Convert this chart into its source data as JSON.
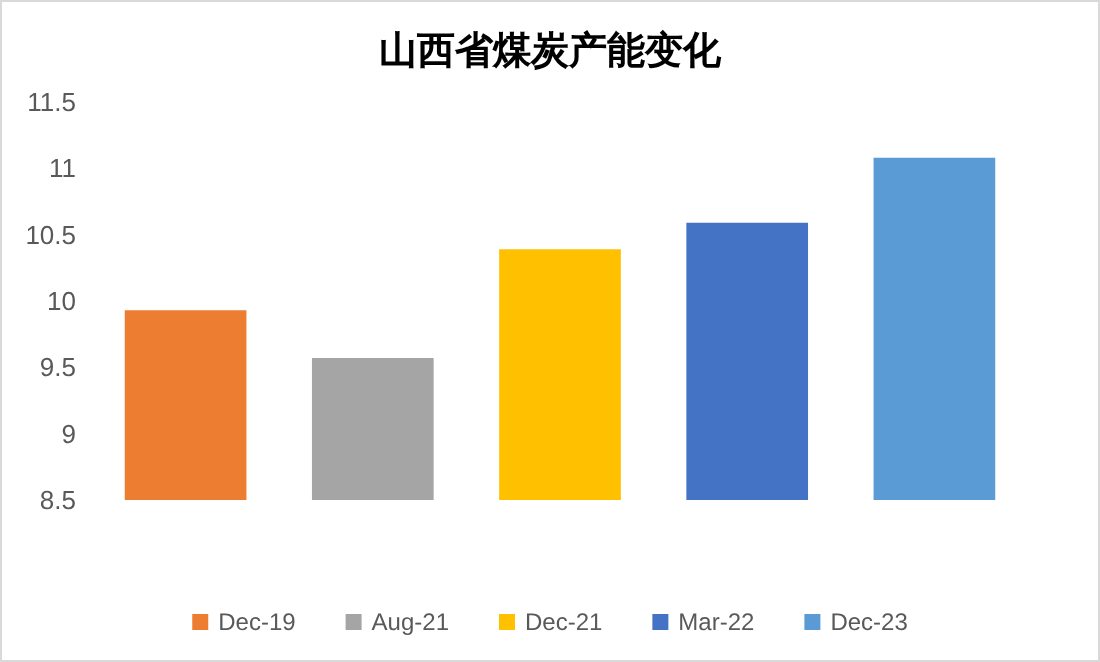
{
  "chart_data": {
    "type": "bar",
    "title": "山西省煤炭产能变化",
    "categories": [
      null,
      null,
      null,
      null,
      null
    ],
    "series": [
      {
        "name": "Dec-19",
        "color": "#ed7d31",
        "values": [
          9.93,
          null,
          null,
          null,
          null
        ]
      },
      {
        "name": "Aug-21",
        "color": "#a5a5a5",
        "values": [
          null,
          9.57,
          null,
          null,
          null
        ]
      },
      {
        "name": "Dec-21",
        "color": "#ffc000",
        "values": [
          null,
          null,
          10.39,
          null,
          null
        ]
      },
      {
        "name": "Mar-22",
        "color": "#4472c4",
        "values": [
          null,
          null,
          null,
          10.59,
          null
        ]
      },
      {
        "name": "Dec-23",
        "color": "#5b9bd5",
        "values": [
          null,
          null,
          null,
          null,
          11.08
        ]
      }
    ],
    "stacked": true,
    "ylim": [
      8.5,
      11.5
    ],
    "yticks": [
      8.5,
      9,
      9.5,
      10,
      10.5,
      11,
      11.5
    ],
    "tick_labels": "y",
    "legend": "bottom"
  }
}
